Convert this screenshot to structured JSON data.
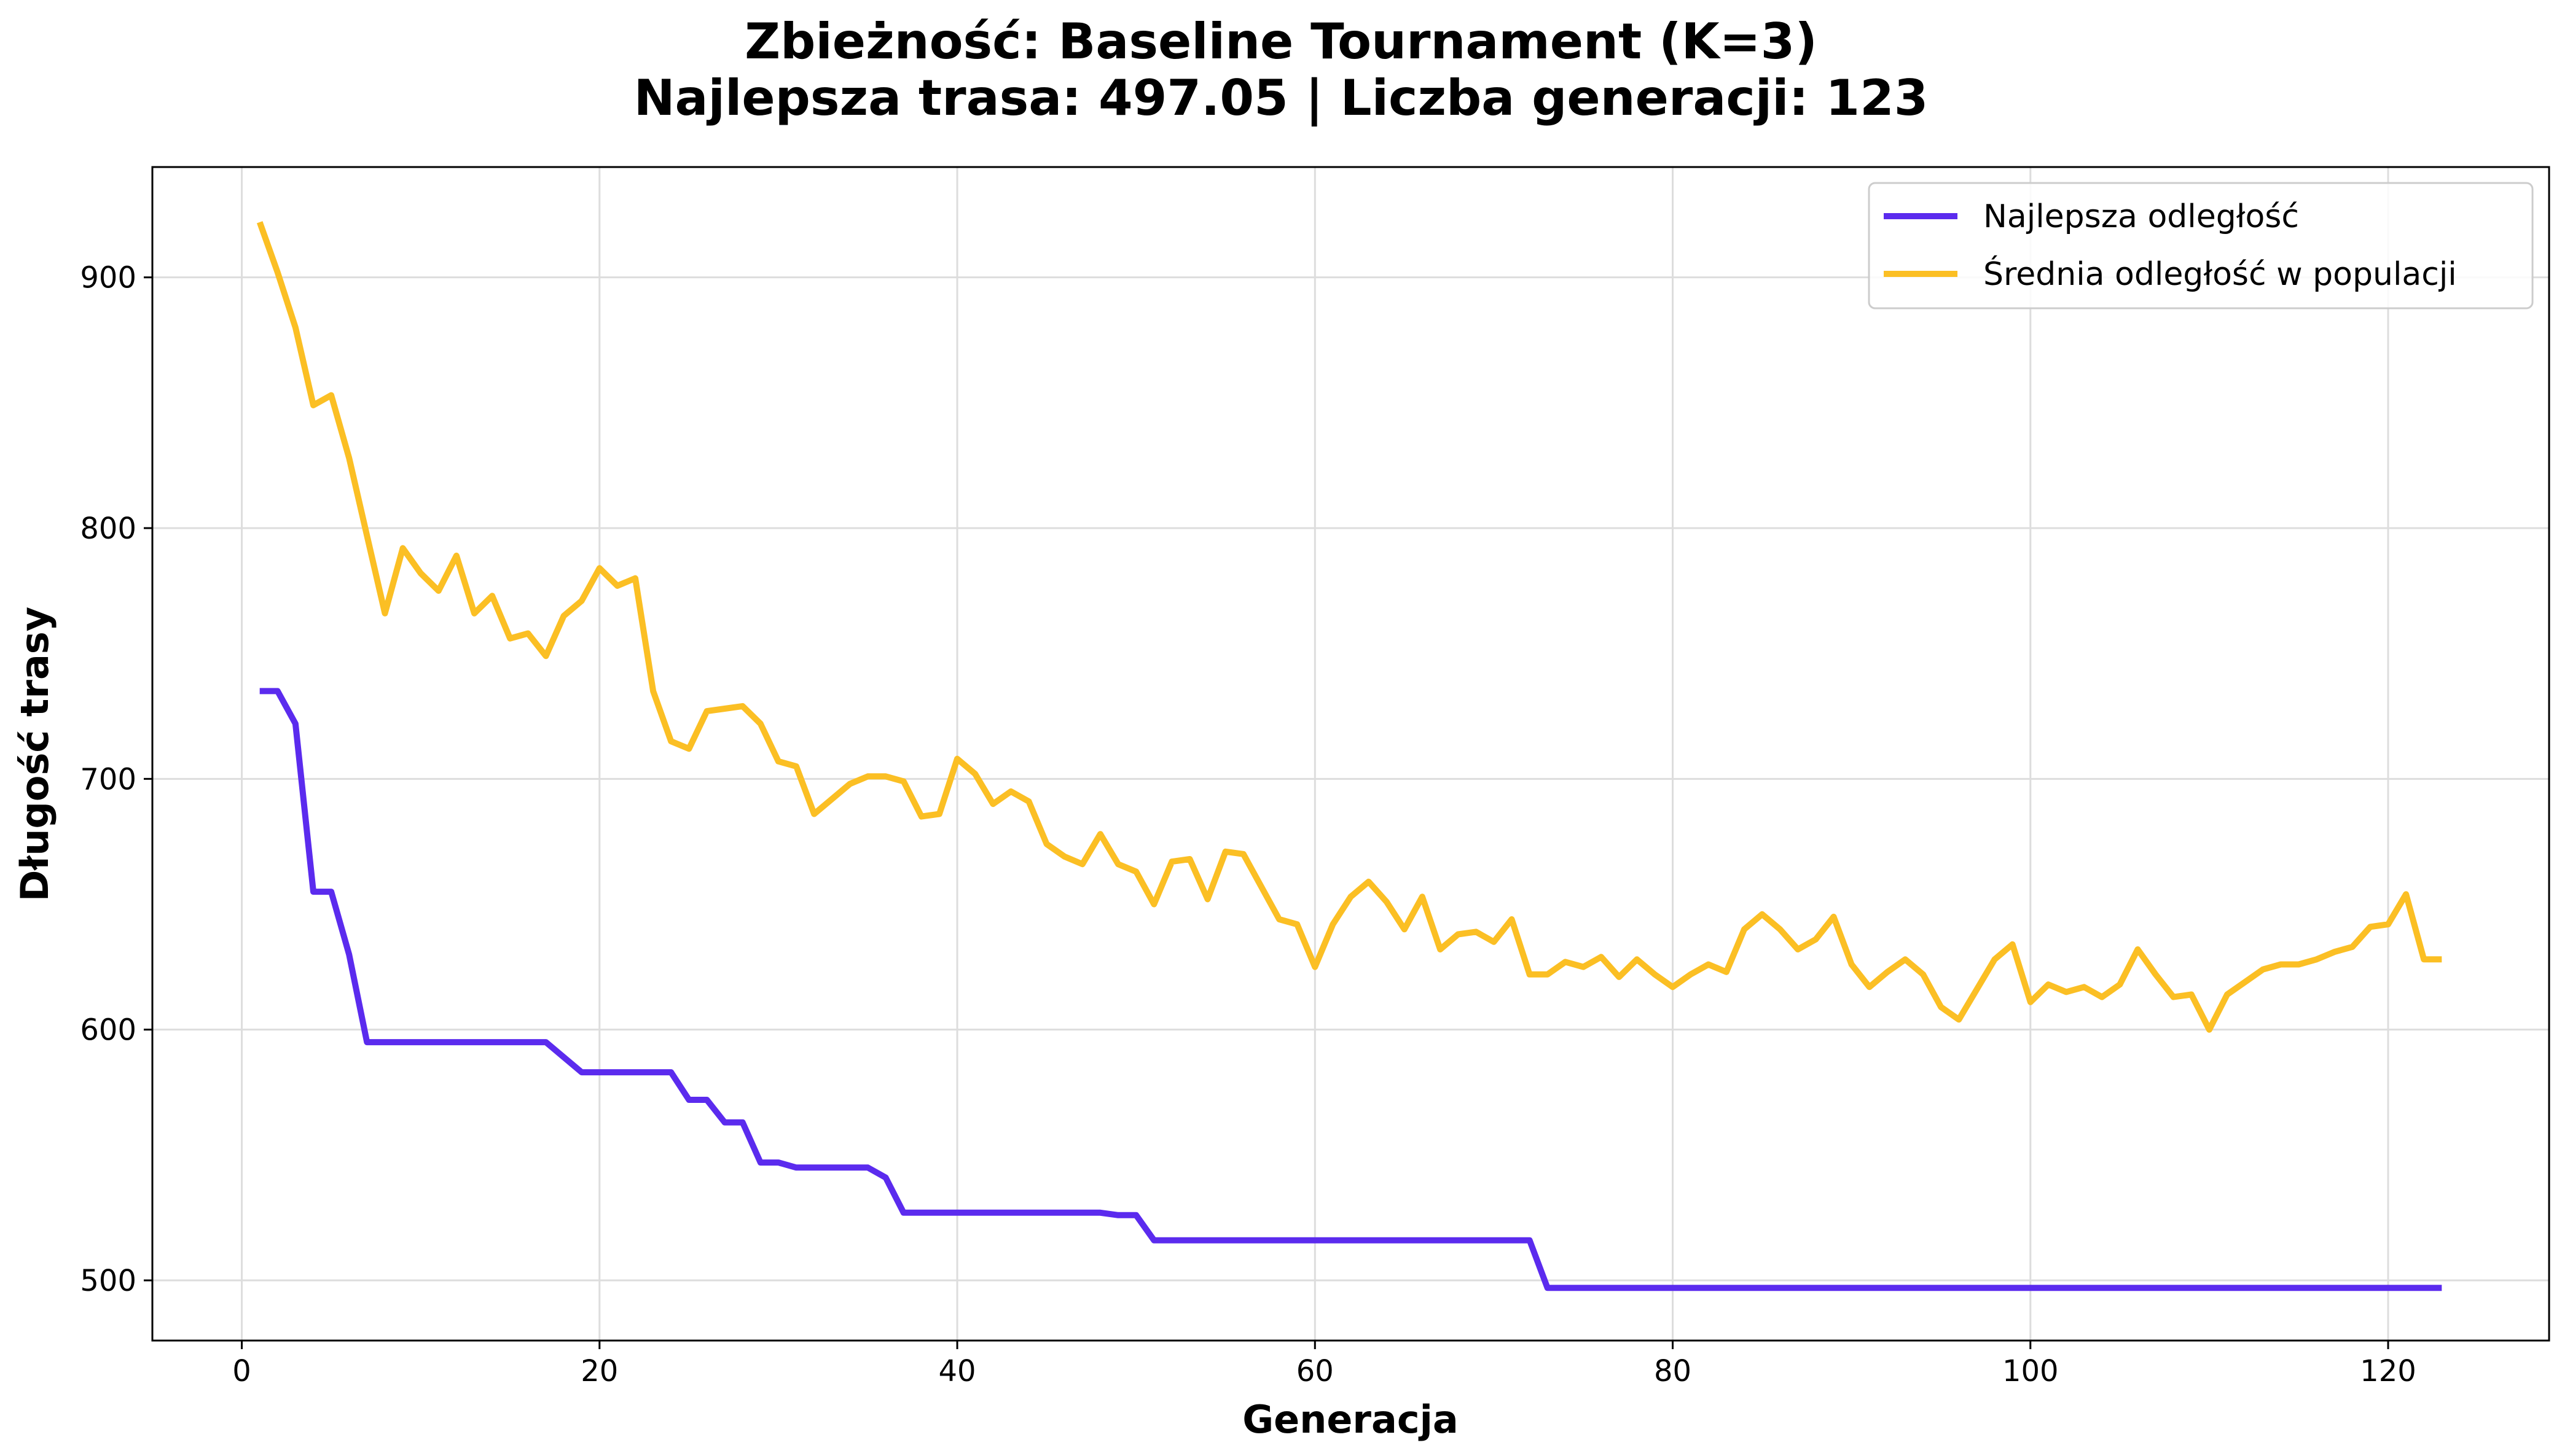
{
  "chart_data": {
    "type": "line",
    "title_line1": "Zbieżność: Baseline Tournament (K=3)",
    "title_line2": "Najlepsza trasa: 497.05 | Liczba generacji: 123",
    "xlabel": "Generacja",
    "ylabel": "Długość trasy",
    "xlim": [
      -5,
      129
    ],
    "ylim": [
      476,
      944
    ],
    "xticks": [
      0,
      20,
      40,
      60,
      80,
      100,
      120
    ],
    "yticks": [
      500,
      600,
      700,
      800,
      900
    ],
    "grid": true,
    "legend_position": "top-right",
    "colors": {
      "best": "#5b2bee",
      "mean": "#fbbf24"
    },
    "series": [
      {
        "name": "Najlepsza odległość",
        "color": "#5b2bee",
        "x": [
          1,
          2,
          3,
          4,
          5,
          6,
          7,
          8,
          9,
          10,
          11,
          12,
          13,
          14,
          15,
          16,
          17,
          18,
          19,
          20,
          21,
          22,
          23,
          24,
          25,
          26,
          27,
          28,
          29,
          30,
          31,
          32,
          33,
          34,
          35,
          36,
          37,
          38,
          39,
          40,
          41,
          42,
          43,
          44,
          45,
          46,
          47,
          48,
          49,
          50,
          51,
          52,
          53,
          54,
          55,
          56,
          57,
          58,
          59,
          60,
          61,
          62,
          63,
          64,
          65,
          66,
          67,
          68,
          69,
          70,
          71,
          72,
          73,
          74,
          75,
          76,
          77,
          78,
          79,
          80,
          81,
          82,
          83,
          84,
          85,
          86,
          87,
          88,
          89,
          90,
          91,
          92,
          93,
          94,
          95,
          96,
          97,
          98,
          99,
          100,
          101,
          102,
          103,
          104,
          105,
          106,
          107,
          108,
          109,
          110,
          111,
          112,
          113,
          114,
          115,
          116,
          117,
          118,
          119,
          120,
          121,
          122,
          123
        ],
        "y": [
          735,
          735,
          722,
          655,
          655,
          630,
          595,
          595,
          595,
          595,
          595,
          595,
          595,
          595,
          595,
          595,
          595,
          589,
          583,
          583,
          583,
          583,
          583,
          583,
          572,
          572,
          563,
          563,
          547,
          547,
          545,
          545,
          545,
          545,
          545,
          541,
          527,
          527,
          527,
          527,
          527,
          527,
          527,
          527,
          527,
          527,
          527,
          527,
          526,
          526,
          516,
          516,
          516,
          516,
          516,
          516,
          516,
          516,
          516,
          516,
          516,
          516,
          516,
          516,
          516,
          516,
          516,
          516,
          516,
          516,
          516,
          516,
          497,
          497,
          497,
          497,
          497,
          497,
          497,
          497,
          497,
          497,
          497,
          497,
          497,
          497,
          497,
          497,
          497,
          497,
          497,
          497,
          497,
          497,
          497,
          497,
          497,
          497,
          497,
          497,
          497,
          497,
          497,
          497,
          497,
          497,
          497,
          497,
          497,
          497,
          497,
          497,
          497,
          497,
          497,
          497,
          497,
          497,
          497,
          497,
          497,
          497,
          497
        ]
      },
      {
        "name": "Średnia odległość w populacji",
        "color": "#fbbf24",
        "x": [
          1,
          2,
          3,
          4,
          5,
          6,
          7,
          8,
          9,
          10,
          11,
          12,
          13,
          14,
          15,
          16,
          17,
          18,
          19,
          20,
          21,
          22,
          23,
          24,
          25,
          26,
          27,
          28,
          29,
          30,
          31,
          32,
          33,
          34,
          35,
          36,
          37,
          38,
          39,
          40,
          41,
          42,
          43,
          44,
          45,
          46,
          47,
          48,
          49,
          50,
          51,
          52,
          53,
          54,
          55,
          56,
          57,
          58,
          59,
          60,
          61,
          62,
          63,
          64,
          65,
          66,
          67,
          68,
          69,
          70,
          71,
          72,
          73,
          74,
          75,
          76,
          77,
          78,
          79,
          80,
          81,
          82,
          83,
          84,
          85,
          86,
          87,
          88,
          89,
          90,
          91,
          92,
          93,
          94,
          95,
          96,
          97,
          98,
          99,
          100,
          101,
          102,
          103,
          104,
          105,
          106,
          107,
          108,
          109,
          110,
          111,
          112,
          113,
          114,
          115,
          116,
          117,
          118,
          119,
          120,
          121,
          122,
          123
        ],
        "y": [
          922,
          902,
          880,
          849,
          853,
          828,
          797,
          766,
          792,
          782,
          775,
          789,
          766,
          773,
          756,
          758,
          749,
          765,
          771,
          784,
          777,
          780,
          735,
          715,
          712,
          727,
          728,
          729,
          722,
          707,
          705,
          686,
          692,
          698,
          701,
          701,
          699,
          685,
          686,
          708,
          702,
          690,
          695,
          691,
          674,
          669,
          666,
          678,
          666,
          663,
          650,
          667,
          668,
          652,
          671,
          670,
          657,
          644,
          642,
          625,
          642,
          653,
          659,
          651,
          640,
          653,
          632,
          638,
          639,
          635,
          644,
          622,
          622,
          627,
          625,
          629,
          621,
          628,
          622,
          617,
          622,
          626,
          623,
          640,
          646,
          640,
          632,
          636,
          645,
          626,
          617,
          623,
          628,
          622,
          609,
          604,
          616,
          628,
          634,
          611,
          618,
          615,
          617,
          613,
          618,
          632,
          622,
          613,
          614,
          600,
          614,
          619,
          624,
          626,
          626,
          628,
          631,
          633,
          641,
          642,
          654,
          628,
          628
        ]
      }
    ]
  }
}
